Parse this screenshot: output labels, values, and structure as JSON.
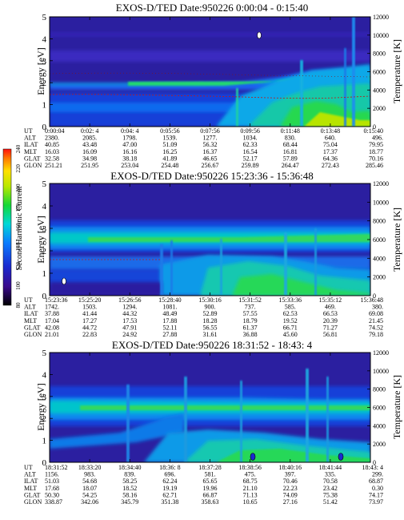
{
  "colorbar": {
    "label": "Second Harmonic Current",
    "ticks": [
      "80",
      "100",
      "120",
      "140",
      "160",
      "180",
      "200",
      "220",
      "240"
    ]
  },
  "row_labels": [
    "UT",
    "ALT",
    "ILAT",
    "MLT",
    "GLAT",
    "GLON"
  ],
  "panels": [
    {
      "title": "EXOS-D/TED   Date:950226   0:00:04 - 0:15:40",
      "ylabel": "Energy [eV]",
      "y2label": "Temperature [K]",
      "yticks": [
        "0",
        "1",
        "2",
        "3",
        "4",
        "5"
      ],
      "y2ticks": [
        "0",
        "2000",
        "4000",
        "6000",
        "8000",
        "10000",
        "12000"
      ],
      "columns": [
        [
          "0:00:04",
          "2380.",
          "40.85",
          "16.03",
          "32.58",
          "251.21"
        ],
        [
          "0:02: 4",
          "2085.",
          "43.48",
          "16.09",
          "34.98",
          "251.95"
        ],
        [
          "0:04: 4",
          "1798.",
          "47.00",
          "16.16",
          "38.18",
          "253.04"
        ],
        [
          "0:05:56",
          "1539.",
          "51.09",
          "16.25",
          "41.89",
          "254.48"
        ],
        [
          "0:07:56",
          "1277.",
          "56.32",
          "16.37",
          "46.65",
          "256.67"
        ],
        [
          "0:09:56",
          "1034.",
          "62.33",
          "16.54",
          "52.17",
          "259.89"
        ],
        [
          "0:11:48",
          "830.",
          "68.44",
          "16.81",
          "57.89",
          "264.47"
        ],
        [
          "0:13:48",
          "640.",
          "75.04",
          "17.37",
          "64.36",
          "272.43"
        ],
        [
          "0:15:40",
          "496.",
          "79.95",
          "18.77",
          "70.16",
          "285.46"
        ]
      ]
    },
    {
      "title": "EXOS-D/TED   Date:950226   15:23:36 - 15:36:48",
      "ylabel": "Energy [eV]",
      "y2label": "Temperature [K]",
      "yticks": [
        "0",
        "1",
        "2",
        "3",
        "4",
        "5"
      ],
      "y2ticks": [
        "0",
        "2000",
        "4000",
        "6000",
        "8000",
        "10000",
        "12000"
      ],
      "columns": [
        [
          "15:23:36",
          "1742.",
          "37.88",
          "17.04",
          "42.08",
          "21.01"
        ],
        [
          "15:25:20",
          "1503.",
          "41.44",
          "17.27",
          "44.72",
          "22.83"
        ],
        [
          "15:26:56",
          "1294.",
          "44.32",
          "17.53",
          "47.91",
          "24.92"
        ],
        [
          "15:28:40",
          "1081.",
          "48.49",
          "17.88",
          "52.11",
          "27.88"
        ],
        [
          "15:30:16",
          "900.",
          "52.89",
          "18.28",
          "56.55",
          "31.61"
        ],
        [
          "15:31:52",
          "737.",
          "57.55",
          "18.79",
          "61.37",
          "36.88"
        ],
        [
          "15:33:36",
          "585.",
          "62.53",
          "19.52",
          "66.71",
          "45.60"
        ],
        [
          "15:35:12",
          "469.",
          "66.53",
          "20.39",
          "71.27",
          "56.81"
        ],
        [
          "15:36:48",
          "380.",
          "69.08",
          "21.45",
          "74.52",
          "79.18"
        ]
      ]
    },
    {
      "title": "EXOS-D/TED   Date:950226   18:31:52 - 18:43: 4",
      "ylabel": "Energy [eV]",
      "y2label": "Temperature [K]",
      "yticks": [
        "0",
        "1",
        "2",
        "3",
        "4",
        "5"
      ],
      "y2ticks": [
        "0",
        "2000",
        "4000",
        "6000",
        "8000",
        "10000",
        "12000"
      ],
      "columns": [
        [
          "18:31:52",
          "1156.",
          "51.03",
          "17.68",
          "50.30",
          "338.87"
        ],
        [
          "18:33:20",
          "983.",
          "54.68",
          "18.07",
          "54.25",
          "342.06"
        ],
        [
          "18:34:40",
          "839.",
          "58.25",
          "18.52",
          "58.16",
          "345.79"
        ],
        [
          "18:36: 8",
          "696.",
          "62.24",
          "19.19",
          "62.71",
          "351.38"
        ],
        [
          "18:37:28",
          "581.",
          "65.65",
          "19.96",
          "66.87",
          "358.63"
        ],
        [
          "18:38:56",
          "475.",
          "68.75",
          "21.10",
          "71.13",
          "10.65"
        ],
        [
          "18:40:16",
          "397.",
          "70.46",
          "22.23",
          "74.09",
          "27.16"
        ],
        [
          "18:41:44",
          "335.",
          "70.58",
          "23.42",
          "75.38",
          "51.42"
        ],
        [
          "18:43: 4",
          "299.",
          "68.87",
          "0.30",
          "74.17",
          "73.97"
        ]
      ]
    }
  ],
  "chart_data": [
    {
      "type": "heatmap",
      "title": "EXOS-D/TED   Date:950226   0:00:04 - 0:15:40",
      "ylabel": "Energy [eV]",
      "y2label": "Temperature [K]",
      "ylim": [
        0,
        5
      ],
      "y2lim": [
        0,
        12000
      ],
      "colorbar": {
        "label": "Second Harmonic Current",
        "range": [
          80,
          240
        ]
      },
      "x_ticks": [
        "0:00:04",
        "0:02: 4",
        "0:04: 4",
        "0:05:56",
        "0:07:56",
        "0:09:56",
        "0:11:48",
        "0:13:48",
        "0:15:40"
      ],
      "features": [
        {
          "energy_center": 1.7,
          "value": 175
        },
        {
          "energy_center": 1.5,
          "value": 165
        }
      ]
    },
    {
      "type": "heatmap",
      "title": "EXOS-D/TED   Date:950226   15:23:36 - 15:36:48",
      "ylabel": "Energy [eV]",
      "y2label": "Temperature [K]",
      "ylim": [
        0,
        5
      ],
      "y2lim": [
        0,
        12000
      ],
      "colorbar": {
        "label": "Second Harmonic Current",
        "range": [
          80,
          240
        ]
      },
      "x_ticks": [
        "15:23:36",
        "15:25:20",
        "15:26:56",
        "15:28:40",
        "15:30:16",
        "15:31:52",
        "15:33:36",
        "15:35:12",
        "15:36:48"
      ],
      "features": [
        {
          "energy_center": 2.5,
          "value": 180
        },
        {
          "energy_center": 1.3,
          "value": 165
        }
      ]
    },
    {
      "type": "heatmap",
      "title": "EXOS-D/TED   Date:950226   18:31:52 - 18:43: 4",
      "ylabel": "Energy [eV]",
      "y2label": "Temperature [K]",
      "ylim": [
        0,
        5
      ],
      "y2lim": [
        0,
        12000
      ],
      "colorbar": {
        "label": "Second Harmonic Current",
        "range": [
          80,
          240
        ]
      },
      "x_ticks": [
        "18:31:52",
        "18:33:20",
        "18:34:40",
        "18:36: 8",
        "18:37:28",
        "18:38:56",
        "18:40:16",
        "18:41:44",
        "18:43: 4"
      ],
      "features": [
        {
          "energy_center": 2.6,
          "value": 175
        },
        {
          "energy_center": 1.2,
          "value": 160
        }
      ]
    }
  ]
}
